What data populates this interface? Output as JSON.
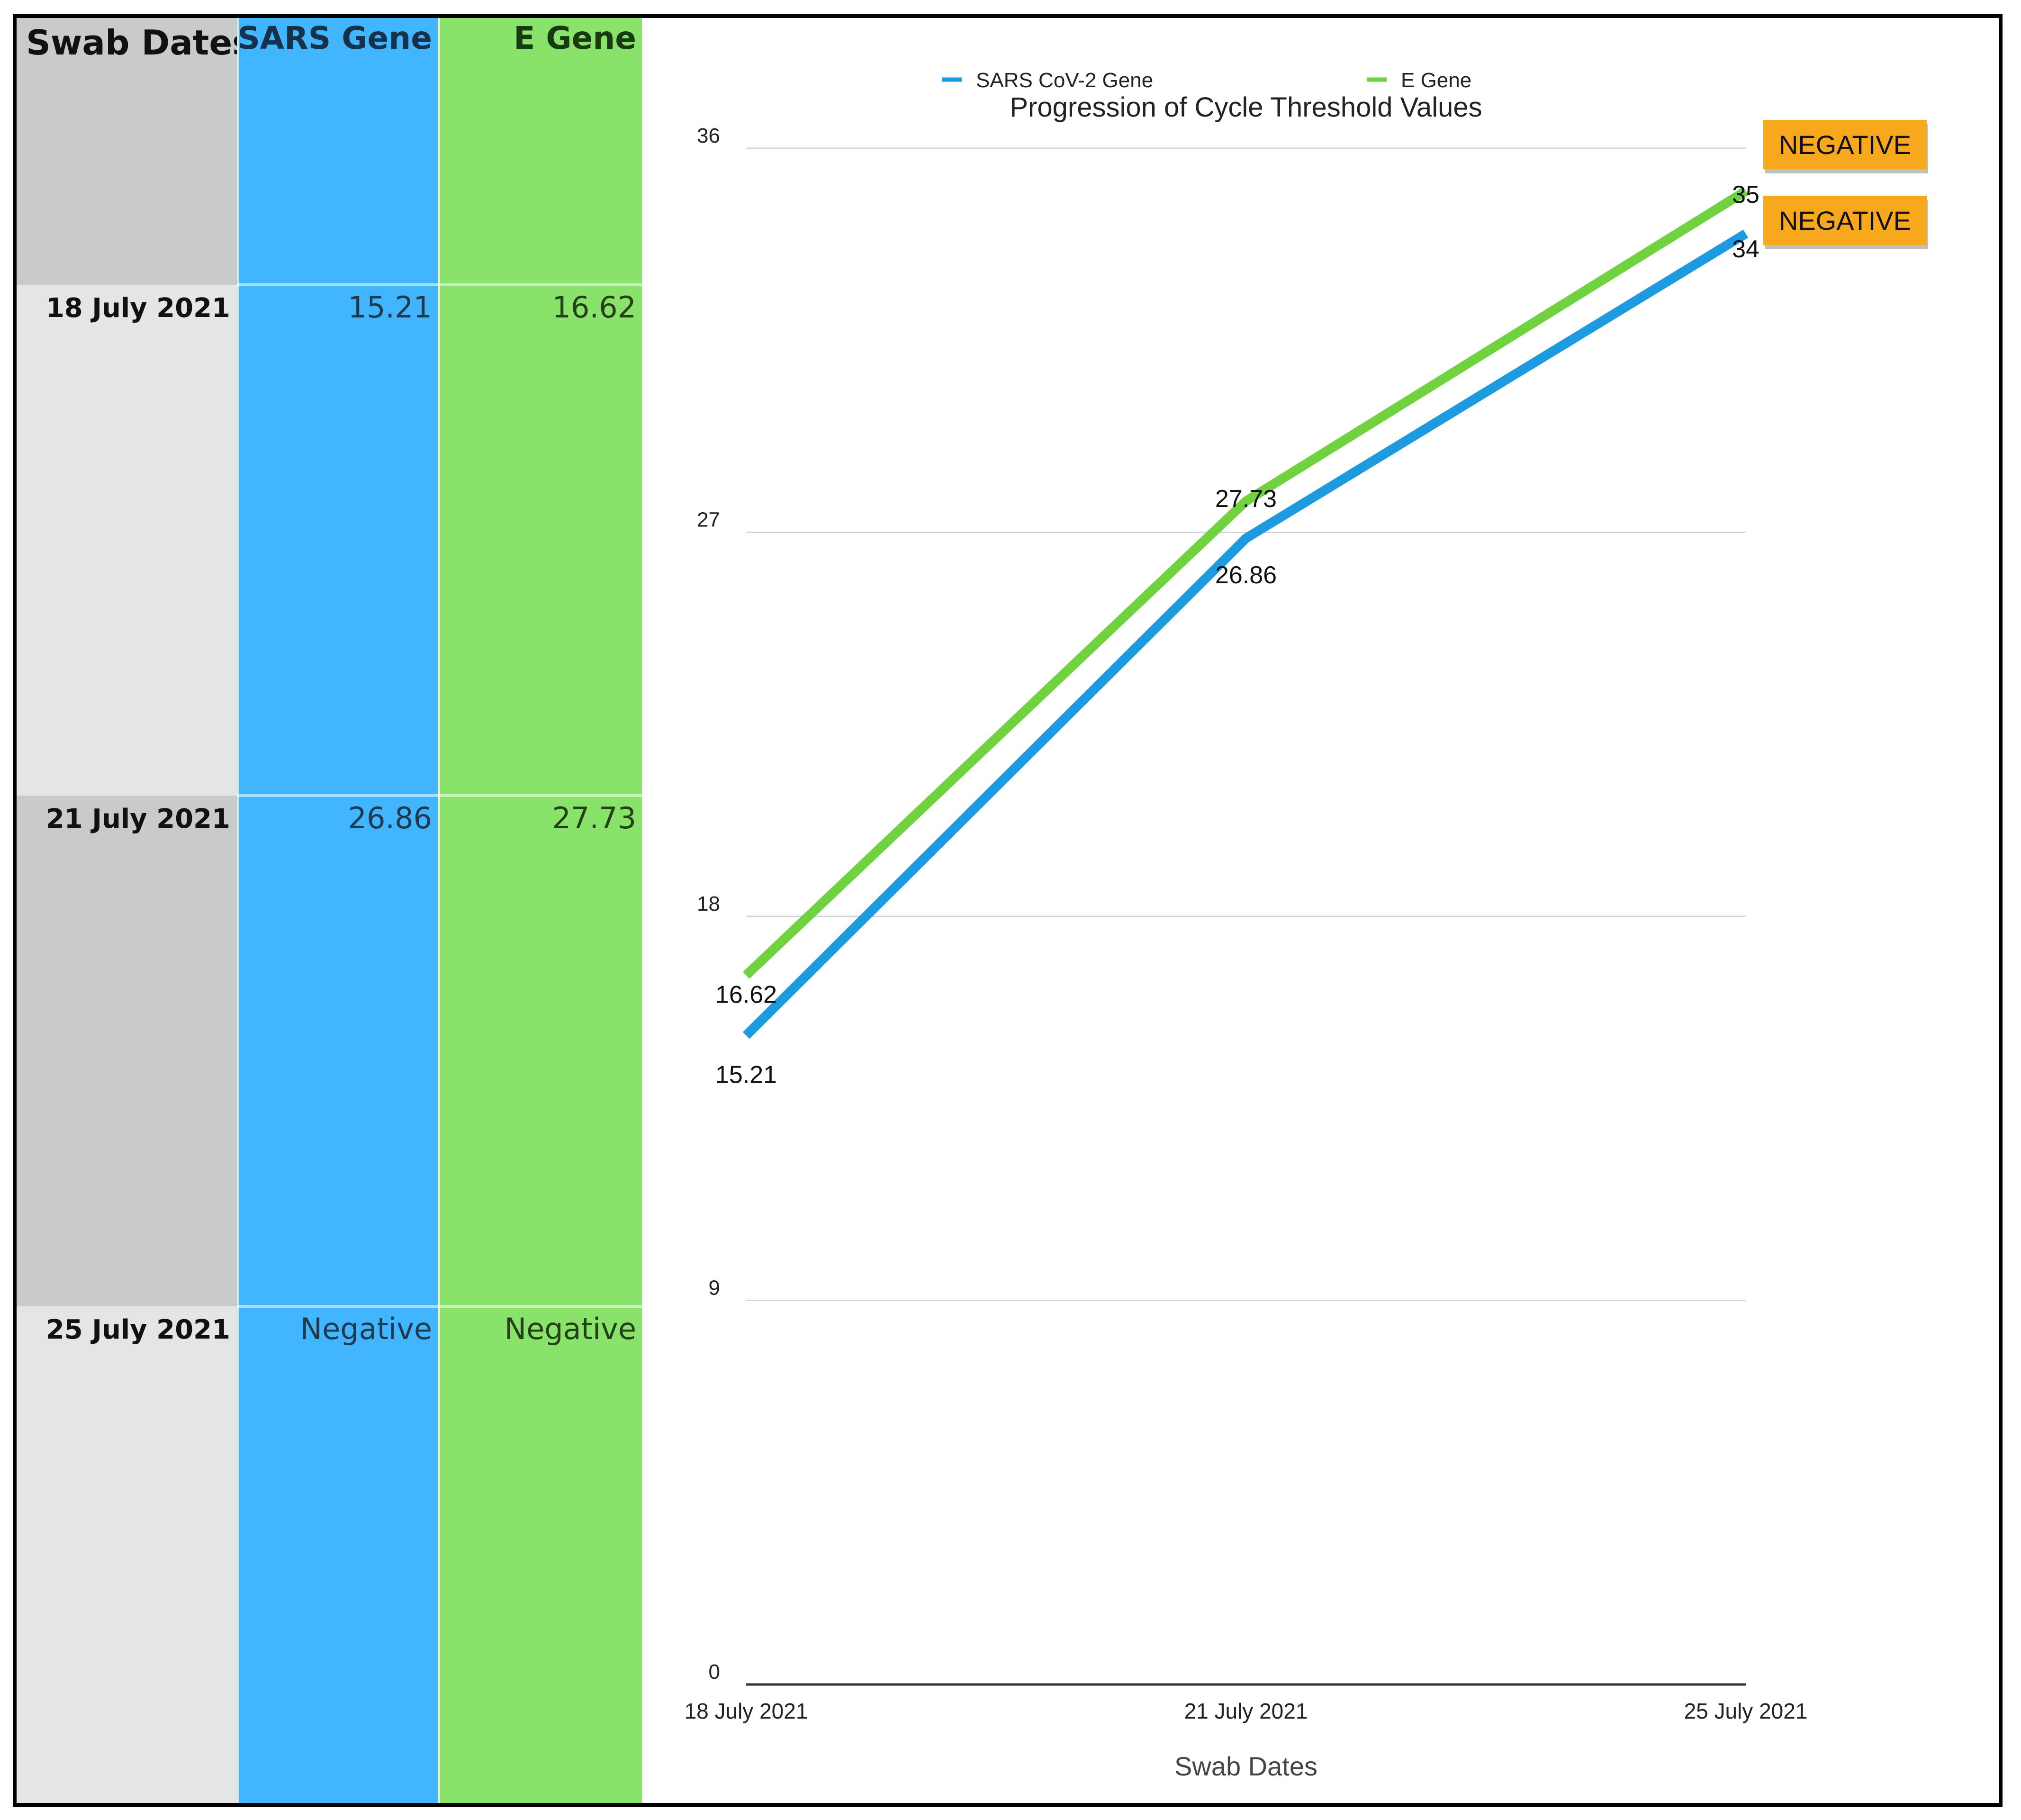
{
  "table": {
    "headers": {
      "dates": "Swab Dates",
      "sars": "SARS Gene",
      "e": "E Gene"
    },
    "rows": [
      {
        "date": "18 July 2021",
        "sars": "15.21",
        "e": "16.62"
      },
      {
        "date": "21 July 2021",
        "sars": "26.86",
        "e": "27.73"
      },
      {
        "date": "25 July 2021",
        "sars": "Negative",
        "e": "Negative"
      }
    ]
  },
  "chart_data": {
    "type": "line",
    "title": "Progression of Cycle Threshold Values",
    "xlabel": "Swab Dates",
    "ylabel": "",
    "categories": [
      "18 July 2021",
      "21 July 2021",
      "25 July 2021"
    ],
    "ylim": [
      0,
      36
    ],
    "yticks": [
      0,
      9,
      18,
      27,
      36
    ],
    "grid": true,
    "legend": "top",
    "series": [
      {
        "name": "SARS CoV-2 Gene",
        "values": [
          15.21,
          26.86,
          34
        ],
        "labels": [
          "15.21",
          "26.86",
          "34"
        ],
        "color": "#1e9ae0"
      },
      {
        "name": "E Gene",
        "values": [
          16.62,
          27.73,
          35
        ],
        "labels": [
          "16.62",
          "27.73",
          "35"
        ],
        "color": "#6fd23e"
      }
    ],
    "annotations": [
      {
        "text": "NEGATIVE",
        "series": 1,
        "point": 2
      },
      {
        "text": "NEGATIVE",
        "series": 0,
        "point": 2
      }
    ],
    "annotation_color": "#f8a81c"
  }
}
